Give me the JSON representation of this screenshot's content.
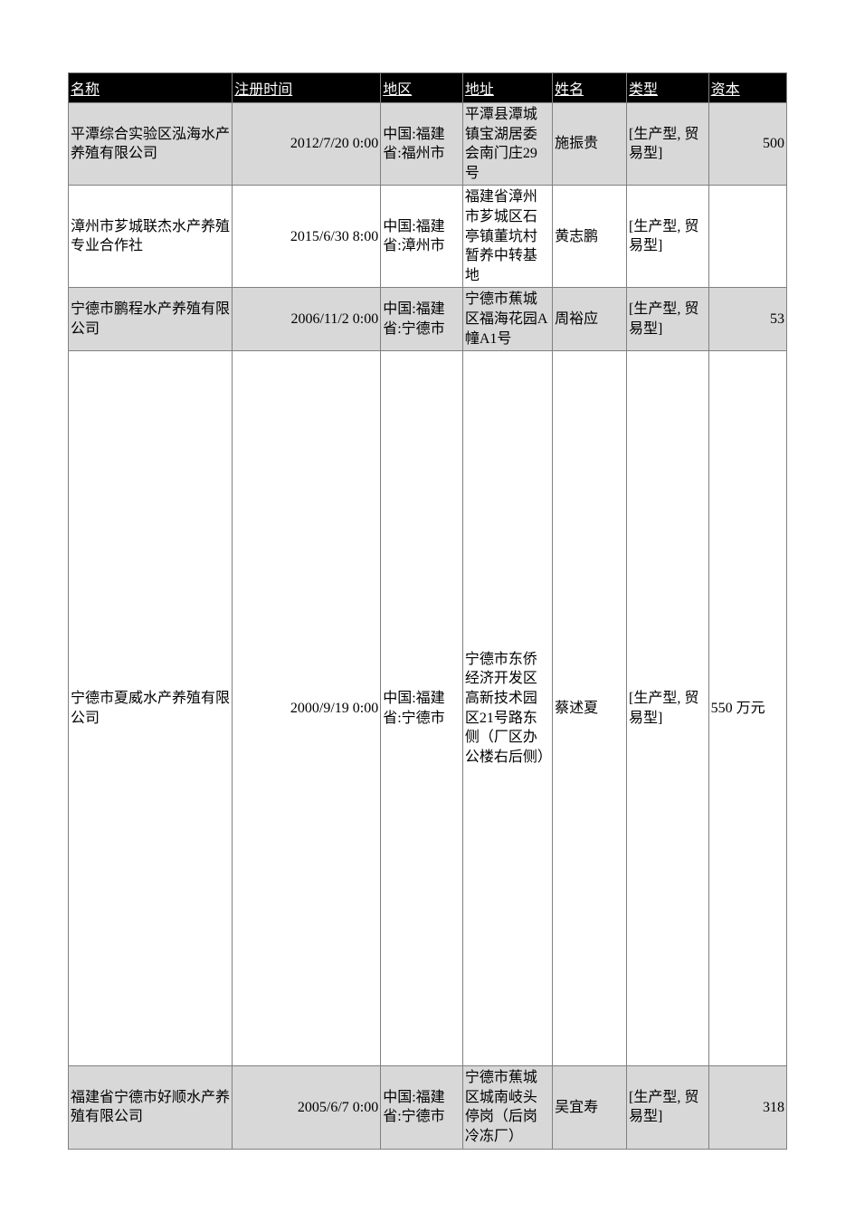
{
  "table": {
    "columns": [
      {
        "key": "name",
        "label": "名称",
        "class": "col-name"
      },
      {
        "key": "time",
        "label": "注册时间",
        "class": "col-time"
      },
      {
        "key": "region",
        "label": "地区",
        "class": "col-region"
      },
      {
        "key": "address",
        "label": "地址",
        "class": "col-address"
      },
      {
        "key": "person",
        "label": "姓名",
        "class": "col-person"
      },
      {
        "key": "type",
        "label": "类型",
        "class": "col-type"
      },
      {
        "key": "capital",
        "label": "资本",
        "class": "col-capital"
      }
    ],
    "rows": [
      {
        "name": "平潭综合实验区泓海水产养殖有限公司",
        "time": "2012/7/20 0:00",
        "region": "中国:福建省:福州市",
        "address": "平潭县潭城镇宝湖居委会南门庄29号",
        "person": "施振贵",
        "type": "[生产型, 贸易型]",
        "capital": "500",
        "capital_align": "right",
        "bg": "odd"
      },
      {
        "name": "漳州市芗城联杰水产养殖专业合作社",
        "time": "2015/6/30 8:00",
        "region": "中国:福建省:漳州市",
        "address": "福建省漳州市芗城区石亭镇董坑村暂养中转基地",
        "person": "黄志鹏",
        "type": "[生产型, 贸易型]",
        "capital": "",
        "capital_align": "right",
        "bg": "even"
      },
      {
        "name": "宁德市鹏程水产养殖有限公司",
        "time": "2006/11/2 0:00",
        "region": "中国:福建省:宁德市",
        "address": "宁德市蕉城区福海花园A幢A1号",
        "person": "周裕应",
        "type": "[生产型, 贸易型]",
        "capital": "53",
        "capital_align": "right",
        "bg": "odd"
      },
      {
        "name": "宁德市夏威水产养殖有限公司",
        "time": "2000/9/19 0:00",
        "region": "中国:福建省:宁德市",
        "address": "宁德市东侨经济开发区高新技术园区21号路东侧（厂区办公楼右后侧）",
        "person": "蔡述夏",
        "type": "[生产型, 贸易型]",
        "capital": "550 万元",
        "capital_align": "left",
        "bg": "even",
        "tall": true
      },
      {
        "name": "福建省宁德市好顺水产养殖有限公司",
        "time": "2005/6/7 0:00",
        "region": "中国:福建省:宁德市",
        "address": "宁德市蕉城区城南岐头停岗（后岗冷冻厂）",
        "person": "吴宜寿",
        "type": "[生产型, 贸易型]",
        "capital": "318",
        "capital_align": "right",
        "bg": "odd"
      }
    ],
    "colors": {
      "header_bg": "#000000",
      "header_text": "#ffffff",
      "border": "#808080",
      "row_odd": "#d8d8d8",
      "row_even": "#ffffff"
    },
    "font_size": 16
  }
}
